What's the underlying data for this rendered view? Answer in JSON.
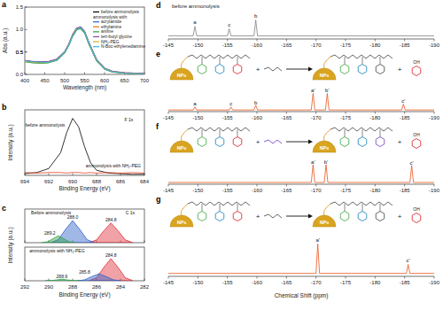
{
  "chart_data": [
    {
      "type": "line",
      "panel_label": "a",
      "xlabel": "Wavelength (nm)",
      "ylabel": "Abs (a.u.)",
      "x": [
        400,
        420,
        440,
        460,
        480,
        500,
        510,
        520,
        530,
        540,
        550,
        560,
        580,
        600,
        620,
        650,
        700
      ],
      "series": [
        {
          "name": "before ammonolysis",
          "color": "#000000",
          "values": [
            0.3,
            0.28,
            0.27,
            0.28,
            0.33,
            0.5,
            0.66,
            0.88,
            1.02,
            1.05,
            0.95,
            0.72,
            0.32,
            0.13,
            0.06,
            0.03,
            0.01
          ]
        },
        {
          "name": "acrylamide",
          "color": "#2a5bd7",
          "values": [
            0.29,
            0.27,
            0.26,
            0.27,
            0.32,
            0.49,
            0.65,
            0.86,
            1.0,
            1.03,
            0.93,
            0.7,
            0.31,
            0.12,
            0.06,
            0.03,
            0.01
          ]
        },
        {
          "name": "ethylamine",
          "color": "#e8741c",
          "values": [
            0.3,
            0.28,
            0.27,
            0.28,
            0.33,
            0.5,
            0.66,
            0.87,
            1.01,
            1.04,
            0.94,
            0.71,
            0.33,
            0.14,
            0.07,
            0.04,
            0.02
          ]
        },
        {
          "name": "aniline",
          "color": "#2a9d3a",
          "values": [
            0.28,
            0.26,
            0.25,
            0.26,
            0.31,
            0.48,
            0.64,
            0.85,
            0.99,
            1.02,
            0.92,
            0.69,
            0.3,
            0.12,
            0.05,
            0.03,
            0.01
          ]
        },
        {
          "name": "tert-butyl glycine",
          "color": "#8e44ad",
          "values": [
            0.31,
            0.29,
            0.28,
            0.29,
            0.34,
            0.51,
            0.67,
            0.89,
            1.03,
            1.06,
            0.96,
            0.73,
            0.33,
            0.14,
            0.07,
            0.04,
            0.02
          ]
        },
        {
          "name": "NH₂-PEG",
          "color": "#d4b21c",
          "values": [
            0.29,
            0.27,
            0.26,
            0.27,
            0.32,
            0.49,
            0.65,
            0.87,
            1.01,
            1.04,
            0.94,
            0.71,
            0.31,
            0.13,
            0.06,
            0.03,
            0.01
          ]
        },
        {
          "name": "N-Boc-ethylenediamine",
          "color": "#35b6e0",
          "values": [
            0.3,
            0.28,
            0.27,
            0.27,
            0.32,
            0.5,
            0.65,
            0.86,
            1.0,
            1.04,
            0.94,
            0.71,
            0.32,
            0.13,
            0.06,
            0.03,
            0.01
          ]
        }
      ],
      "xlim": [
        400,
        700
      ],
      "ylim": [
        0,
        1.5
      ],
      "xticks": [
        400,
        450,
        500,
        550,
        600,
        650,
        700
      ],
      "yticks": [
        {
          "value": 0,
          "label": "0.0"
        },
        0.5,
        {
          "value": 1,
          "label": "1.0"
        },
        0.5,
        {
          "value": 1.5,
          "label": "1.5"
        }
      ],
      "legend": "upper right",
      "legend_title": "ammonolysis with:"
    },
    {
      "type": "line",
      "panel_label": "b",
      "xlabel": "Binding Energy (eV)",
      "ylabel": "Intensity (a.u.)",
      "x": [
        694,
        693,
        692,
        691,
        690.5,
        690,
        689.5,
        689,
        688.5,
        688,
        687,
        686,
        685,
        684
      ],
      "series": [
        {
          "color": "#000000",
          "values": [
            0.03,
            0.05,
            0.12,
            0.4,
            0.75,
            1.0,
            0.85,
            0.5,
            0.22,
            0.09,
            0.04,
            0.03,
            0.02,
            0.02
          ]
        },
        {
          "color": "#e8401c",
          "values": [
            0.05,
            0.04,
            0.05,
            0.05,
            0.04,
            0.05,
            0.05,
            0.04,
            0.05,
            0.04,
            0.05,
            0.04,
            0.05,
            0.04
          ]
        }
      ],
      "xlim": [
        694,
        684
      ],
      "ylim": [
        0,
        1.15
      ],
      "xticks": [
        694,
        692,
        690,
        688,
        686,
        684
      ],
      "tick_labels": "x",
      "annotations": [
        {
          "text": "F 1s",
          "x": 685.3,
          "y": 0.95
        },
        {
          "text": "before ammonolysis",
          "x": 692.3,
          "y": 0.85
        },
        {
          "text": "ammonolysis with NH₂-PEG",
          "x": 686.6,
          "y": 0.14
        }
      ]
    },
    {
      "type": "area",
      "panel_label": "c",
      "ylabel": "Intensity (a.u.)",
      "series": [
        {
          "color": "#e0303a",
          "x": [
            286.6,
            286.0,
            285.4,
            284.8,
            284.2,
            283.6,
            283.0
          ],
          "values": [
            0.01,
            0.12,
            0.51,
            0.85,
            0.51,
            0.12,
            0.01
          ]
        },
        {
          "color": "#2f62c9",
          "x": [
            289.8,
            289.2,
            288.6,
            288.0,
            287.4,
            286.8,
            286.2
          ],
          "values": [
            0.01,
            0.13,
            0.57,
            0.95,
            0.57,
            0.13,
            0.01
          ]
        },
        {
          "color": "#2e9e48",
          "x": [
            290.6,
            290.1,
            289.6,
            289.2,
            288.8,
            288.3,
            287.8
          ],
          "values": [
            0,
            0.04,
            0.18,
            0.3,
            0.18,
            0.04,
            0
          ]
        }
      ],
      "xlim": [
        292,
        282
      ],
      "ylim": [
        0,
        1.45
      ],
      "xticks": [
        292,
        290,
        288,
        286,
        284,
        282
      ],
      "tick_labels": false,
      "annotations": [
        {
          "text": "Before ammonolysis",
          "x": 289.8,
          "y": 1.22
        },
        {
          "text": "C 1s",
          "x": 283.2,
          "y": 1.22
        },
        {
          "text": "289.2",
          "x": 289.9,
          "y": 0.36
        },
        {
          "text": "288.0",
          "x": 288.0,
          "y": 1.02
        },
        {
          "text": "284.8",
          "x": 284.8,
          "y": 0.92
        }
      ]
    },
    {
      "type": "area",
      "xlabel": "Binding Energy (eV)",
      "series": [
        {
          "color": "#e0303a",
          "x": [
            286.6,
            286.0,
            285.4,
            284.8,
            284.2,
            283.6,
            283.0
          ],
          "values": [
            0.01,
            0.13,
            0.57,
            0.95,
            0.57,
            0.13,
            0.01
          ]
        },
        {
          "color": "#2f62c9",
          "x": [
            287.6,
            287.0,
            286.4,
            285.8,
            285.2,
            284.6,
            284.0
          ],
          "values": [
            0,
            0.04,
            0.18,
            0.3,
            0.18,
            0.04,
            0
          ]
        },
        {
          "color": "#2e9e48",
          "x": [
            290.3,
            289.8,
            289.3,
            288.9,
            288.5,
            288.0,
            287.5
          ],
          "values": [
            0,
            0.01,
            0.04,
            0.07,
            0.04,
            0.01,
            0
          ]
        }
      ],
      "xlim": [
        292,
        282
      ],
      "ylim": [
        0,
        1.45
      ],
      "xticks": [
        292,
        290,
        288,
        286,
        284,
        282
      ],
      "tick_labels": "x",
      "annotations": [
        {
          "text": "ammonolysis with NH₂-PEG",
          "x": 289.3,
          "y": 1.22
        },
        {
          "text": "288.9",
          "x": 288.9,
          "y": 0.12
        },
        {
          "text": "285.8",
          "x": 287.0,
          "y": 0.32
        },
        {
          "text": "284.8",
          "x": 284.8,
          "y": 1.02
        }
      ]
    },
    {
      "type": "line",
      "panel_label": "d",
      "subtitle": "before ammonolysis",
      "series": [
        {
          "color": "#808080",
          "x": [
            -145,
            -149.2,
            -149.5,
            -149.8,
            -155.0,
            -155.3,
            -155.6,
            -159.5,
            -159.8,
            -160.1,
            -190
          ],
          "values": [
            0,
            0,
            0.3,
            0,
            0,
            0.22,
            0,
            0,
            0.5,
            0,
            0
          ]
        }
      ],
      "xlim": [
        -145,
        -190
      ],
      "ylim": [
        -0.1,
        0.8
      ],
      "xticks": [
        -145,
        -150,
        -155,
        -160,
        -165,
        -170,
        -175,
        -180,
        -185,
        -190
      ],
      "tick_labels": "x",
      "annotations": [
        {
          "text": "a",
          "x": -149.5,
          "y": 0.38
        },
        {
          "text": "c",
          "x": -155.3,
          "y": 0.3
        },
        {
          "text": "b",
          "x": -159.8,
          "y": 0.58
        }
      ]
    },
    {
      "type": "line",
      "panel_label": "e",
      "series": [
        {
          "color": "#e8541c",
          "x": [
            -145,
            -149.2,
            -149.5,
            -149.8,
            -155.3,
            -155.6,
            -155.9,
            -159.5,
            -159.8,
            -160.1,
            -169.2,
            -169.5,
            -169.8,
            -171.6,
            -171.9,
            -172.2,
            -184.5,
            -184.8,
            -185.1,
            -190
          ],
          "values": [
            0,
            0,
            0.18,
            0,
            0,
            0.18,
            0,
            0,
            0.28,
            0,
            0,
            1.0,
            0,
            0,
            1.0,
            0,
            0,
            0.35,
            0,
            0
          ]
        }
      ],
      "xlim": [
        -145,
        -190
      ],
      "ylim": [
        -0.1,
        1.4
      ],
      "xticks": [
        -145,
        -150,
        -155,
        -160,
        -165,
        -170,
        -175,
        -180,
        -185,
        -190
      ],
      "tick_labels": "x",
      "annotations": [
        {
          "text": "a",
          "x": -149.5,
          "y": 0.25
        },
        {
          "text": "c",
          "x": -155.6,
          "y": 0.25
        },
        {
          "text": "b",
          "x": -159.8,
          "y": 0.35
        },
        {
          "text": "a'",
          "x": -169.5,
          "y": 1.07
        },
        {
          "text": "b'",
          "x": -171.9,
          "y": 1.07
        },
        {
          "text": "c'",
          "x": -184.8,
          "y": 0.42
        }
      ]
    },
    {
      "type": "line",
      "panel_label": "f",
      "series": [
        {
          "color": "#e8541c",
          "x": [
            -145,
            -169.2,
            -169.5,
            -169.8,
            -171.4,
            -171.7,
            -172.0,
            -185.9,
            -186.2,
            -186.5,
            -190
          ],
          "values": [
            0,
            0,
            1.0,
            0,
            0,
            1.0,
            0,
            0,
            0.95,
            0,
            0
          ]
        }
      ],
      "xlim": [
        -145,
        -190
      ],
      "ylim": [
        -0.1,
        1.4
      ],
      "xticks": [
        -145,
        -150,
        -155,
        -160,
        -165,
        -170,
        -175,
        -180,
        -185,
        -190
      ],
      "tick_labels": "x",
      "annotations": [
        {
          "text": "a'",
          "x": -169.5,
          "y": 1.07
        },
        {
          "text": "b'",
          "x": -171.7,
          "y": 1.07
        },
        {
          "text": "c'",
          "x": -186.2,
          "y": 1.02
        }
      ]
    },
    {
      "type": "line",
      "panel_label": "g",
      "xlabel": "Chemical Shift (ppm)",
      "series": [
        {
          "color": "#e8541c",
          "x": [
            -145,
            -170.0,
            -170.3,
            -170.6,
            -185.3,
            -185.6,
            -185.9,
            -190
          ],
          "values": [
            0,
            0,
            1.0,
            0,
            0,
            0.3,
            0,
            0
          ]
        }
      ],
      "xlim": [
        -145,
        -190
      ],
      "ylim": [
        -0.1,
        1.4
      ],
      "xticks": [
        -145,
        -150,
        -155,
        -160,
        -165,
        -170,
        -175,
        -180,
        -185,
        -190
      ],
      "tick_labels": "x",
      "annotations": [
        {
          "text": "a'",
          "x": -170.3,
          "y": 1.07
        },
        {
          "text": "c'",
          "x": -185.6,
          "y": 0.37
        }
      ]
    }
  ],
  "schemes": [
    {
      "particle": "NPs",
      "plus": "+",
      "leaving_group": "OH"
    },
    {
      "particle": "NPs",
      "plus": "+",
      "leaving_group": "OH"
    },
    {
      "particle": "NPs",
      "plus": "+",
      "leaving_group": "OH"
    }
  ]
}
